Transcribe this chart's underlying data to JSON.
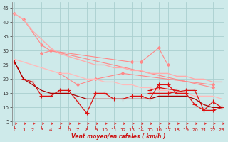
{
  "xlabel": "Vent moyen/en rafales ( km/h )",
  "bg_color": "#ceeaea",
  "grid_color": "#aacfcf",
  "x_ticks": [
    0,
    1,
    2,
    3,
    4,
    5,
    6,
    7,
    8,
    9,
    10,
    11,
    12,
    13,
    14,
    15,
    16,
    17,
    18,
    19,
    20,
    21,
    22,
    23
  ],
  "y_ticks": [
    5,
    10,
    15,
    20,
    25,
    30,
    35,
    40,
    45
  ],
  "xlim": [
    -0.3,
    23.3
  ],
  "ylim": [
    3.5,
    47
  ],
  "lines": [
    {
      "color": "#ff8888",
      "alpha": 1.0,
      "lw": 0.8,
      "marker": "D",
      "ms": 2.0,
      "data": [
        [
          0,
          43
        ],
        [
          1,
          41
        ],
        [
          3,
          32
        ],
        [
          4,
          30
        ],
        [
          22,
          17
        ]
      ]
    },
    {
      "color": "#ff8888",
      "alpha": 1.0,
      "lw": 0.8,
      "marker": "D",
      "ms": 2.0,
      "data": [
        [
          3,
          29
        ],
        [
          4,
          30
        ],
        [
          13,
          26
        ],
        [
          14,
          26
        ],
        [
          16,
          31
        ],
        [
          17,
          25
        ]
      ]
    },
    {
      "color": "#ff8888",
      "alpha": 1.0,
      "lw": 0.8,
      "marker": "D",
      "ms": 2.0,
      "data": [
        [
          5,
          22
        ],
        [
          7,
          18
        ],
        [
          9,
          20
        ],
        [
          12,
          22
        ],
        [
          22,
          18
        ]
      ]
    },
    {
      "color": "#ffaaaa",
      "alpha": 1.0,
      "lw": 1.0,
      "marker": null,
      "ms": 0,
      "data": [
        [
          0,
          43
        ],
        [
          1,
          41
        ],
        [
          2,
          37
        ],
        [
          3,
          34
        ],
        [
          4,
          31
        ],
        [
          5,
          29
        ],
        [
          6,
          28
        ],
        [
          7,
          27
        ],
        [
          8,
          26
        ],
        [
          9,
          25
        ],
        [
          10,
          25
        ],
        [
          11,
          24
        ],
        [
          12,
          24
        ],
        [
          13,
          23
        ],
        [
          14,
          23
        ],
        [
          15,
          22
        ],
        [
          16,
          22
        ],
        [
          17,
          22
        ],
        [
          18,
          21
        ],
        [
          19,
          21
        ],
        [
          20,
          20
        ],
        [
          21,
          20
        ],
        [
          22,
          19
        ],
        [
          23,
          19
        ]
      ]
    },
    {
      "color": "#ffbbbb",
      "alpha": 1.0,
      "lw": 1.0,
      "marker": null,
      "ms": 0,
      "data": [
        [
          0,
          27
        ],
        [
          1,
          26
        ],
        [
          2,
          25
        ],
        [
          3,
          24
        ],
        [
          4,
          23
        ],
        [
          5,
          22
        ],
        [
          6,
          22
        ],
        [
          7,
          21
        ],
        [
          8,
          20
        ],
        [
          9,
          20
        ],
        [
          10,
          19
        ],
        [
          11,
          19
        ],
        [
          12,
          18
        ],
        [
          13,
          18
        ],
        [
          14,
          17
        ],
        [
          15,
          17
        ],
        [
          16,
          16
        ],
        [
          17,
          16
        ],
        [
          18,
          15
        ],
        [
          19,
          15
        ],
        [
          20,
          14
        ],
        [
          21,
          14
        ],
        [
          22,
          14
        ],
        [
          23,
          13
        ]
      ]
    },
    {
      "color": "#dd1111",
      "alpha": 1.0,
      "lw": 0.9,
      "marker": "+",
      "ms": 4.0,
      "data": [
        [
          0,
          26
        ],
        [
          1,
          20
        ],
        [
          2,
          19
        ],
        [
          3,
          14
        ],
        [
          4,
          14
        ],
        [
          5,
          16
        ],
        [
          6,
          16
        ],
        [
          7,
          12
        ],
        [
          8,
          8
        ],
        [
          9,
          15
        ],
        [
          10,
          15
        ],
        [
          11,
          13
        ],
        [
          12,
          13
        ],
        [
          13,
          14
        ],
        [
          14,
          14
        ],
        [
          15,
          13
        ],
        [
          16,
          18
        ],
        [
          17,
          18
        ],
        [
          18,
          15
        ],
        [
          19,
          15
        ],
        [
          20,
          11
        ],
        [
          21,
          9
        ],
        [
          22,
          12
        ],
        [
          23,
          10
        ]
      ]
    },
    {
      "color": "#dd1111",
      "alpha": 1.0,
      "lw": 0.9,
      "marker": "+",
      "ms": 4.0,
      "data": [
        [
          15,
          16
        ],
        [
          16,
          17
        ],
        [
          18,
          16
        ]
      ]
    },
    {
      "color": "#dd1111",
      "alpha": 1.0,
      "lw": 0.9,
      "marker": "+",
      "ms": 4.0,
      "data": [
        [
          15,
          15
        ],
        [
          17,
          15
        ],
        [
          19,
          16
        ],
        [
          20,
          16
        ],
        [
          21,
          9
        ],
        [
          22,
          9
        ],
        [
          23,
          10
        ]
      ]
    },
    {
      "color": "#aa0000",
      "alpha": 1.0,
      "lw": 0.9,
      "marker": null,
      "ms": 0,
      "data": [
        [
          0,
          26
        ],
        [
          1,
          20
        ],
        [
          2,
          18
        ],
        [
          3,
          16
        ],
        [
          4,
          15
        ],
        [
          5,
          15
        ],
        [
          6,
          15
        ],
        [
          7,
          14
        ],
        [
          8,
          13
        ],
        [
          9,
          13
        ],
        [
          10,
          13
        ],
        [
          11,
          13
        ],
        [
          12,
          13
        ],
        [
          13,
          13
        ],
        [
          14,
          13
        ],
        [
          15,
          13
        ],
        [
          16,
          14
        ],
        [
          17,
          14
        ],
        [
          18,
          14
        ],
        [
          19,
          14
        ],
        [
          20,
          13
        ],
        [
          21,
          11
        ],
        [
          22,
          10
        ],
        [
          23,
          10
        ]
      ]
    }
  ],
  "arrow_color": "#dd2222",
  "arrow_lw": 0.7,
  "tick_fontsize": 5,
  "xlabel_fontsize": 5.5,
  "xlabel_color": "#cc1111"
}
